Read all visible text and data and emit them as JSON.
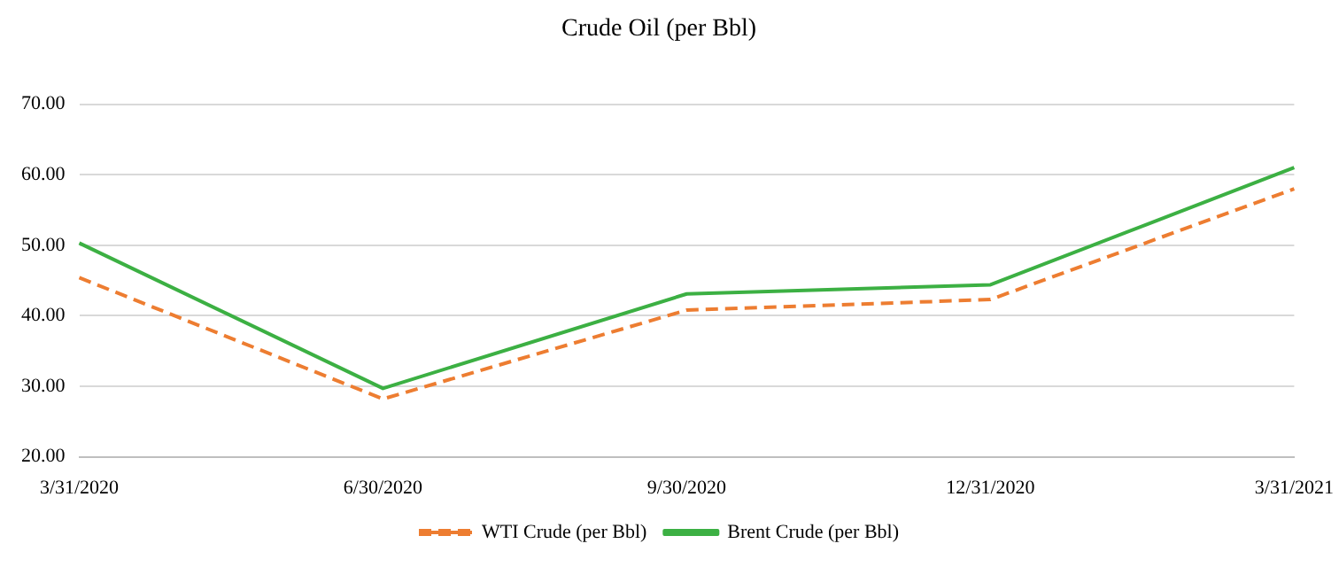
{
  "chart_data": {
    "type": "line",
    "title": "Crude Oil (per Bbl)",
    "categories": [
      "3/31/2020",
      "6/30/2020",
      "9/30/2020",
      "12/31/2020",
      "3/31/2021"
    ],
    "series": [
      {
        "name": "WTI Crude (per Bbl)",
        "color": "#ed7d31",
        "line_style": "dashed",
        "values": [
          45.4,
          28.2,
          40.8,
          42.3,
          58.0
        ]
      },
      {
        "name": "Brent Crude (per Bbl)",
        "color": "#3cb043",
        "line_style": "solid",
        "values": [
          50.3,
          29.7,
          43.1,
          44.4,
          61.0
        ]
      }
    ],
    "ylim": [
      20,
      70
    ],
    "yticks": [
      {
        "value": 20,
        "label": "20.00"
      },
      {
        "value": 30,
        "label": "30.00"
      },
      {
        "value": 40,
        "label": "40.00"
      },
      {
        "value": 50,
        "label": "50.00"
      },
      {
        "value": 60,
        "label": "60.00"
      },
      {
        "value": 70,
        "label": "70.00"
      }
    ],
    "grid": "y",
    "legend": "bottom",
    "marker": "none"
  }
}
